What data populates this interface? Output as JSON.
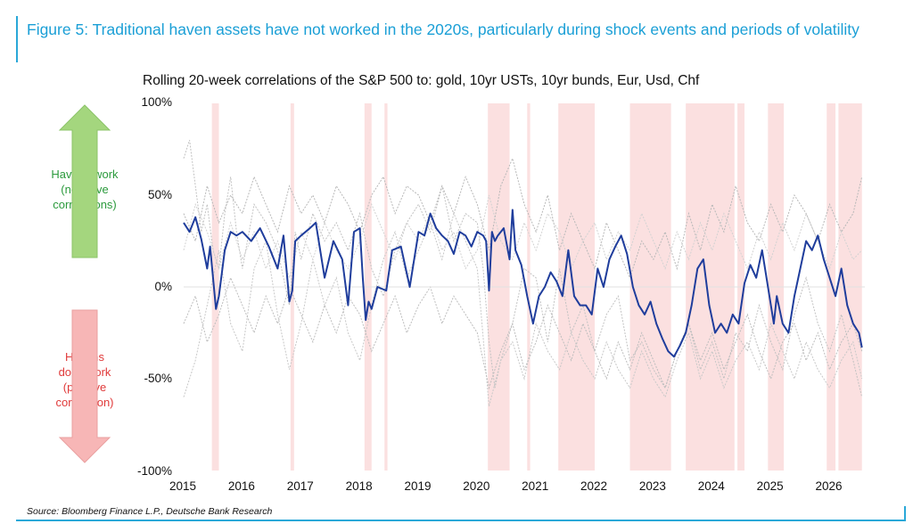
{
  "figure_title": "Figure 5:  Traditional haven assets have not worked in the 2020s, particularly during shock events and periods of volatility",
  "source": "Source: Bloomberg Finance L.P., Deutsche Bank Research",
  "annotations": {
    "havens_work": [
      "Havens work",
      "(negative",
      "correlations)"
    ],
    "havens_dont_work": [
      "Havens",
      "don't work",
      "(positive",
      "correlation)"
    ],
    "arrow_up_color": "#a4d67e",
    "arrow_down_color": "#f7b6b6"
  },
  "chart_data": {
    "type": "line",
    "title": "Rolling 20-week correlations of the S&P 500 to: gold, 10yr USTs, 10yr bunds, Eur, Usd, Chf",
    "xlabel": "",
    "ylabel": "",
    "xlim": [
      2015.0,
      2026.6
    ],
    "ylim": [
      -100,
      100
    ],
    "y_ticks": [
      100,
      50,
      0,
      -50,
      -100
    ],
    "y_tick_labels": [
      "100%",
      "50%",
      "0%",
      "-50%",
      "-100%"
    ],
    "x_ticks": [
      2015,
      2016,
      2017,
      2018,
      2019,
      2020,
      2021,
      2022,
      2023,
      2024,
      2025,
      2026
    ],
    "x_tick_labels": [
      "2015",
      "2016",
      "2017",
      "2018",
      "2019",
      "2020",
      "2021",
      "2022",
      "2023",
      "2024",
      "2025",
      "2026"
    ],
    "grid": false,
    "shock_periods": [
      [
        2015.48,
        2015.6
      ],
      [
        2016.82,
        2016.88
      ],
      [
        2018.08,
        2018.2
      ],
      [
        2018.42,
        2018.47
      ],
      [
        2020.18,
        2020.55
      ],
      [
        2020.85,
        2020.9
      ],
      [
        2021.38,
        2022.0
      ],
      [
        2022.6,
        2023.3
      ],
      [
        2023.55,
        2024.38
      ],
      [
        2024.43,
        2024.55
      ],
      [
        2024.95,
        2025.22
      ],
      [
        2025.95,
        2026.1
      ],
      [
        2026.15,
        2026.55
      ]
    ],
    "shade_color": "#fbe0e0",
    "main_series": {
      "color": "#1f3d9c",
      "x": [
        2015.0,
        2015.1,
        2015.2,
        2015.3,
        2015.4,
        2015.45,
        2015.5,
        2015.55,
        2015.6,
        2015.7,
        2015.8,
        2015.9,
        2016.0,
        2016.15,
        2016.3,
        2016.45,
        2016.6,
        2016.7,
        2016.8,
        2016.85,
        2016.9,
        2017.0,
        2017.15,
        2017.25,
        2017.4,
        2017.55,
        2017.7,
        2017.8,
        2017.9,
        2018.0,
        2018.05,
        2018.1,
        2018.15,
        2018.2,
        2018.3,
        2018.45,
        2018.55,
        2018.7,
        2018.85,
        2019.0,
        2019.1,
        2019.2,
        2019.3,
        2019.4,
        2019.5,
        2019.6,
        2019.7,
        2019.8,
        2019.9,
        2020.0,
        2020.1,
        2020.15,
        2020.2,
        2020.25,
        2020.3,
        2020.35,
        2020.45,
        2020.55,
        2020.6,
        2020.65,
        2020.75,
        2020.85,
        2020.95,
        2021.05,
        2021.15,
        2021.25,
        2021.35,
        2021.45,
        2021.55,
        2021.65,
        2021.75,
        2021.85,
        2021.95,
        2022.05,
        2022.15,
        2022.25,
        2022.35,
        2022.45,
        2022.55,
        2022.65,
        2022.75,
        2022.85,
        2022.95,
        2023.05,
        2023.15,
        2023.25,
        2023.35,
        2023.45,
        2023.55,
        2023.65,
        2023.75,
        2023.85,
        2023.95,
        2024.05,
        2024.15,
        2024.25,
        2024.35,
        2024.45,
        2024.55,
        2024.65,
        2024.75,
        2024.85,
        2024.95,
        2025.05,
        2025.1,
        2025.2,
        2025.3,
        2025.4,
        2025.5,
        2025.6,
        2025.7,
        2025.8,
        2025.9,
        2026.0,
        2026.1,
        2026.2,
        2026.3,
        2026.4,
        2026.5,
        2026.55
      ],
      "y": [
        35,
        30,
        38,
        26,
        10,
        22,
        5,
        -12,
        -5,
        20,
        30,
        28,
        30,
        25,
        32,
        22,
        10,
        28,
        -8,
        -2,
        25,
        28,
        32,
        35,
        5,
        25,
        15,
        -10,
        30,
        32,
        5,
        -18,
        -8,
        -12,
        0,
        -2,
        20,
        22,
        0,
        30,
        28,
        40,
        32,
        28,
        25,
        18,
        30,
        28,
        22,
        30,
        28,
        25,
        -2,
        30,
        25,
        28,
        32,
        15,
        42,
        20,
        12,
        -5,
        -20,
        -5,
        0,
        8,
        3,
        -5,
        20,
        -5,
        -10,
        -10,
        -15,
        10,
        0,
        15,
        22,
        28,
        18,
        0,
        -10,
        -15,
        -8,
        -20,
        -28,
        -35,
        -38,
        -32,
        -25,
        -10,
        10,
        15,
        -10,
        -25,
        -20,
        -25,
        -15,
        -20,
        2,
        12,
        5,
        20,
        0,
        -20,
        -5,
        -20,
        -25,
        -5,
        10,
        25,
        20,
        28,
        15,
        5,
        -5,
        10,
        -10,
        -20,
        -25,
        -33
      ]
    },
    "background_series": [
      {
        "color": "#c2c2c2",
        "x": [
          2015.0,
          2015.1,
          2015.2,
          2015.3,
          2015.4,
          2015.5,
          2015.6,
          2015.7,
          2015.8,
          2015.9,
          2016.0,
          2016.2,
          2016.4,
          2016.6,
          2016.8,
          2016.9,
          2017.0,
          2017.2,
          2017.4,
          2017.6,
          2017.8,
          2018.0,
          2018.2,
          2018.4,
          2018.6,
          2018.8,
          2019.0,
          2019.2,
          2019.4,
          2019.6,
          2019.8,
          2020.0,
          2020.1,
          2020.2,
          2020.3,
          2020.4,
          2020.6,
          2020.8,
          2021.0,
          2021.2,
          2021.4,
          2021.6,
          2021.8,
          2022.0,
          2022.2,
          2022.4,
          2022.6,
          2022.8,
          2023.0,
          2023.2,
          2023.4,
          2023.6,
          2023.8,
          2024.0,
          2024.2,
          2024.4,
          2024.6,
          2024.8,
          2025.0,
          2025.2,
          2025.4,
          2025.6,
          2025.8,
          2026.0,
          2026.2,
          2026.4,
          2026.55
        ],
        "y": [
          70,
          80,
          55,
          30,
          45,
          20,
          10,
          40,
          60,
          30,
          10,
          45,
          35,
          20,
          -10,
          30,
          15,
          40,
          25,
          35,
          20,
          40,
          10,
          -5,
          20,
          35,
          45,
          30,
          55,
          25,
          40,
          35,
          10,
          -30,
          -55,
          -40,
          -20,
          10,
          5,
          -30,
          10,
          -25,
          -10,
          -35,
          -15,
          -5,
          -40,
          -30,
          -45,
          -55,
          -35,
          -20,
          -45,
          -30,
          -50,
          -25,
          -35,
          -10,
          -30,
          -45,
          -15,
          5,
          -20,
          -35,
          -15,
          -40,
          -60
        ]
      },
      {
        "color": "#c8c8c8",
        "x": [
          2015.0,
          2015.2,
          2015.4,
          2015.6,
          2015.8,
          2016.0,
          2016.2,
          2016.4,
          2016.6,
          2016.8,
          2017.0,
          2017.2,
          2017.4,
          2017.6,
          2017.8,
          2018.0,
          2018.2,
          2018.4,
          2018.6,
          2018.8,
          2019.0,
          2019.2,
          2019.4,
          2019.6,
          2019.8,
          2020.0,
          2020.2,
          2020.4,
          2020.6,
          2020.8,
          2021.0,
          2021.2,
          2021.4,
          2021.6,
          2021.8,
          2022.0,
          2022.2,
          2022.4,
          2022.6,
          2022.8,
          2023.0,
          2023.2,
          2023.4,
          2023.6,
          2023.8,
          2024.0,
          2024.2,
          2024.4,
          2024.6,
          2024.8,
          2025.0,
          2025.2,
          2025.4,
          2025.6,
          2025.8,
          2026.0,
          2026.2,
          2026.4,
          2026.55
        ],
        "y": [
          -60,
          -40,
          -10,
          20,
          -20,
          -35,
          10,
          25,
          -15,
          -45,
          -20,
          15,
          -10,
          5,
          -25,
          -40,
          -10,
          15,
          30,
          5,
          20,
          35,
          15,
          40,
          25,
          10,
          -65,
          -40,
          -30,
          -50,
          -20,
          -35,
          -45,
          -25,
          -40,
          -50,
          -30,
          -45,
          -55,
          -35,
          -50,
          -60,
          -40,
          -25,
          -50,
          -35,
          -55,
          -40,
          -30,
          -45,
          -20,
          -35,
          -50,
          -30,
          -45,
          -55,
          -40,
          -30,
          -50
        ]
      },
      {
        "color": "#b8b8b8",
        "x": [
          2015.0,
          2015.2,
          2015.4,
          2015.6,
          2015.8,
          2016.0,
          2016.2,
          2016.4,
          2016.6,
          2016.8,
          2017.0,
          2017.2,
          2017.4,
          2017.6,
          2017.8,
          2018.0,
          2018.2,
          2018.4,
          2018.6,
          2018.8,
          2019.0,
          2019.2,
          2019.4,
          2019.6,
          2019.8,
          2020.0,
          2020.2,
          2020.4,
          2020.6,
          2020.8,
          2021.0,
          2021.2,
          2021.4,
          2021.6,
          2021.8,
          2022.0,
          2022.2,
          2022.4,
          2022.6,
          2022.8,
          2023.0,
          2023.2,
          2023.4,
          2023.6,
          2023.8,
          2024.0,
          2024.2,
          2024.4,
          2024.6,
          2024.8,
          2025.0,
          2025.2,
          2025.4,
          2025.6,
          2025.8,
          2026.0,
          2026.2,
          2026.4,
          2026.55
        ],
        "y": [
          40,
          25,
          55,
          35,
          50,
          40,
          60,
          45,
          30,
          55,
          40,
          50,
          35,
          55,
          45,
          30,
          50,
          60,
          40,
          55,
          50,
          35,
          55,
          40,
          60,
          45,
          20,
          55,
          70,
          45,
          30,
          50,
          20,
          40,
          25,
          10,
          35,
          20,
          5,
          25,
          15,
          30,
          10,
          40,
          20,
          45,
          30,
          55,
          35,
          25,
          45,
          30,
          50,
          40,
          25,
          45,
          30,
          40,
          60
        ]
      },
      {
        "color": "#d2d2d2",
        "x": [
          2015.0,
          2015.2,
          2015.4,
          2015.6,
          2015.8,
          2016.0,
          2016.2,
          2016.4,
          2016.6,
          2016.8,
          2017.0,
          2017.2,
          2017.4,
          2017.6,
          2017.8,
          2018.0,
          2018.2,
          2018.4,
          2018.6,
          2018.8,
          2019.0,
          2019.2,
          2019.4,
          2019.6,
          2019.8,
          2020.0,
          2020.2,
          2020.4,
          2020.6,
          2020.8,
          2021.0,
          2021.2,
          2021.4,
          2021.6,
          2021.8,
          2022.0,
          2022.2,
          2022.4,
          2022.6,
          2022.8,
          2023.0,
          2023.2,
          2023.4,
          2023.6,
          2023.8,
          2024.0,
          2024.2,
          2024.4,
          2024.6,
          2024.8,
          2025.0,
          2025.2,
          2025.4,
          2025.6,
          2025.8,
          2026.0,
          2026.2,
          2026.4,
          2026.55
        ],
        "y": [
          20,
          45,
          30,
          10,
          35,
          15,
          30,
          10,
          25,
          5,
          30,
          15,
          35,
          20,
          10,
          25,
          45,
          30,
          15,
          35,
          25,
          40,
          20,
          30,
          10,
          20,
          50,
          25,
          15,
          35,
          20,
          40,
          30,
          10,
          25,
          35,
          15,
          30,
          20,
          40,
          25,
          10,
          30,
          15,
          35,
          20,
          40,
          25,
          10,
          30,
          15,
          35,
          20,
          40,
          25,
          10,
          30,
          15,
          20
        ]
      },
      {
        "color": "#bdbdbd",
        "x": [
          2015.0,
          2015.2,
          2015.4,
          2015.6,
          2015.8,
          2016.0,
          2016.2,
          2016.4,
          2016.6,
          2016.8,
          2017.0,
          2017.2,
          2017.4,
          2017.6,
          2017.8,
          2018.0,
          2018.2,
          2018.4,
          2018.6,
          2018.8,
          2019.0,
          2019.2,
          2019.4,
          2019.6,
          2019.8,
          2020.0,
          2020.2,
          2020.4,
          2020.6,
          2020.8,
          2021.0,
          2021.2,
          2021.4,
          2021.6,
          2021.8,
          2022.0,
          2022.2,
          2022.4,
          2022.6,
          2022.8,
          2023.0,
          2023.2,
          2023.4,
          2023.6,
          2023.8,
          2024.0,
          2024.2,
          2024.4,
          2024.6,
          2024.8,
          2025.0,
          2025.2,
          2025.4,
          2025.6,
          2025.8,
          2026.0,
          2026.2,
          2026.4,
          2026.55
        ],
        "y": [
          -20,
          -5,
          -30,
          -15,
          5,
          -10,
          -25,
          -5,
          -20,
          0,
          -15,
          -30,
          -10,
          -25,
          -5,
          -15,
          -35,
          -20,
          -5,
          -25,
          -10,
          0,
          -20,
          -5,
          -15,
          -25,
          -55,
          -35,
          -20,
          -45,
          -30,
          -10,
          -25,
          -40,
          -20,
          -35,
          -50,
          -30,
          -45,
          -25,
          -40,
          -55,
          -35,
          -20,
          -40,
          -25,
          -45,
          -30,
          -15,
          -35,
          -50,
          -30,
          -20,
          -40,
          -25,
          -45,
          -30,
          -20,
          -35
        ]
      }
    ]
  }
}
